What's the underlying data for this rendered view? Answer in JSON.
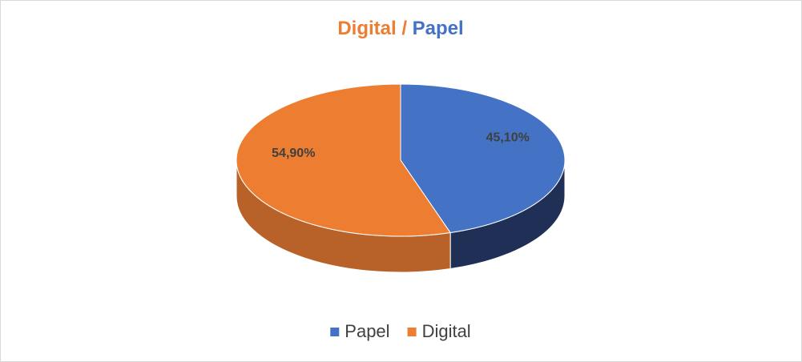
{
  "chart_data": {
    "type": "pie3d",
    "title_parts": [
      {
        "text": "Digital /",
        "color": "#ed7d31"
      },
      {
        "text": "Papel",
        "color": "#4472c4"
      }
    ],
    "categories": [
      "Papel",
      "Digital"
    ],
    "values": [
      45.1,
      54.9
    ],
    "value_labels": [
      "45,10%",
      "54,90%"
    ],
    "colors": [
      "#4472c4",
      "#ed7d31"
    ],
    "side_colors": [
      "#1f2f55",
      "#b8622a"
    ],
    "legend": "bottom"
  }
}
